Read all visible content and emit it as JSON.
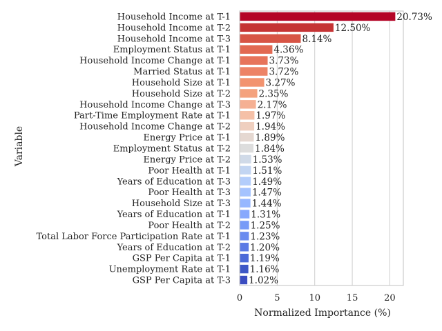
{
  "chart_data": {
    "type": "bar",
    "orientation": "horizontal",
    "title": "",
    "xlabel": "Normalized Importance (%)",
    "ylabel": "Variable",
    "xlim": [
      0,
      21.8
    ],
    "xticks": [
      0,
      5,
      10,
      15,
      20
    ],
    "grid": true,
    "legend": "none",
    "colormap": "coolwarm",
    "categories": [
      "Household Income at T-1",
      "Household Income at T-2",
      "Household Income at T-3",
      "Employment Status at T-1",
      "Household Income Change at T-1",
      "Married Status at T-1",
      "Household Size at T-1",
      "Household Size at T-2",
      "Household Income Change at T-3",
      "Part-Time Employment Rate at T-1",
      "Household Income Change at T-2",
      "Energy Price at T-1",
      "Employment Status at T-2",
      "Energy Price at T-2",
      "Poor Health at T-1",
      "Years of Education at T-3",
      "Poor Health at T-3",
      "Household Size at T-3",
      "Years of Education at T-1",
      "Poor Health at T-2",
      "Total Labor Force Participation Rate at T-1",
      "Years of Education at T-2",
      "GSP Per Capita at T-1",
      "Unemployment Rate at T-1",
      "GSP Per Capita at T-3"
    ],
    "values": [
      20.73,
      12.5,
      8.14,
      4.36,
      3.73,
      3.72,
      3.27,
      2.35,
      2.17,
      1.97,
      1.94,
      1.89,
      1.84,
      1.53,
      1.51,
      1.49,
      1.47,
      1.44,
      1.31,
      1.25,
      1.23,
      1.2,
      1.19,
      1.16,
      1.02
    ],
    "value_labels": [
      "20.73%",
      "12.50%",
      "8.14%",
      "4.36%",
      "3.73%",
      "3.72%",
      "3.27%",
      "2.35%",
      "2.17%",
      "1.97%",
      "1.94%",
      "1.89%",
      "1.84%",
      "1.53%",
      "1.51%",
      "1.49%",
      "1.47%",
      "1.44%",
      "1.31%",
      "1.25%",
      "1.23%",
      "1.20%",
      "1.19%",
      "1.16%",
      "1.02%"
    ],
    "colors": [
      "#b40426",
      "#c53334",
      "#d75445",
      "#e26952",
      "#e7745b",
      "#ed8366",
      "#f2936f",
      "#f4a27e",
      "#f5b093",
      "#f5c0a7",
      "#efcfbf",
      "#e5d8d1",
      "#dddddd",
      "#d0dae8",
      "#c2d5f2",
      "#b3cdfb",
      "#a5c3fe",
      "#96b7ff",
      "#87a8fd",
      "#779af7",
      "#6a8bef",
      "#5b7ae5",
      "#4c6ad8",
      "#3e57c6",
      "#3b4cc0"
    ]
  }
}
